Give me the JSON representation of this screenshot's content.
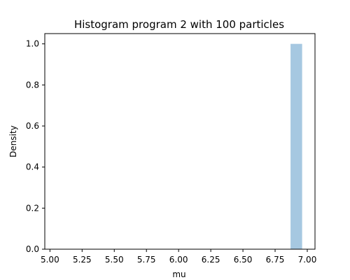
{
  "chart_data": {
    "type": "bar",
    "title": "Histogram program 2 with 100 particles",
    "xlabel": "mu",
    "ylabel": "Density",
    "xlim": [
      4.96,
      7.06
    ],
    "ylim": [
      0,
      1.05
    ],
    "xticks": [
      "5.00",
      "5.25",
      "5.50",
      "5.75",
      "6.00",
      "6.25",
      "6.50",
      "6.75",
      "7.00"
    ],
    "yticks": [
      "0.0",
      "0.2",
      "0.4",
      "0.6",
      "0.8",
      "1.0"
    ],
    "bins": [
      {
        "x_start": 6.87,
        "x_end": 6.96,
        "density": 1.0
      }
    ],
    "bar_color": "#a6c8e1",
    "grid": false,
    "legend": "none"
  }
}
